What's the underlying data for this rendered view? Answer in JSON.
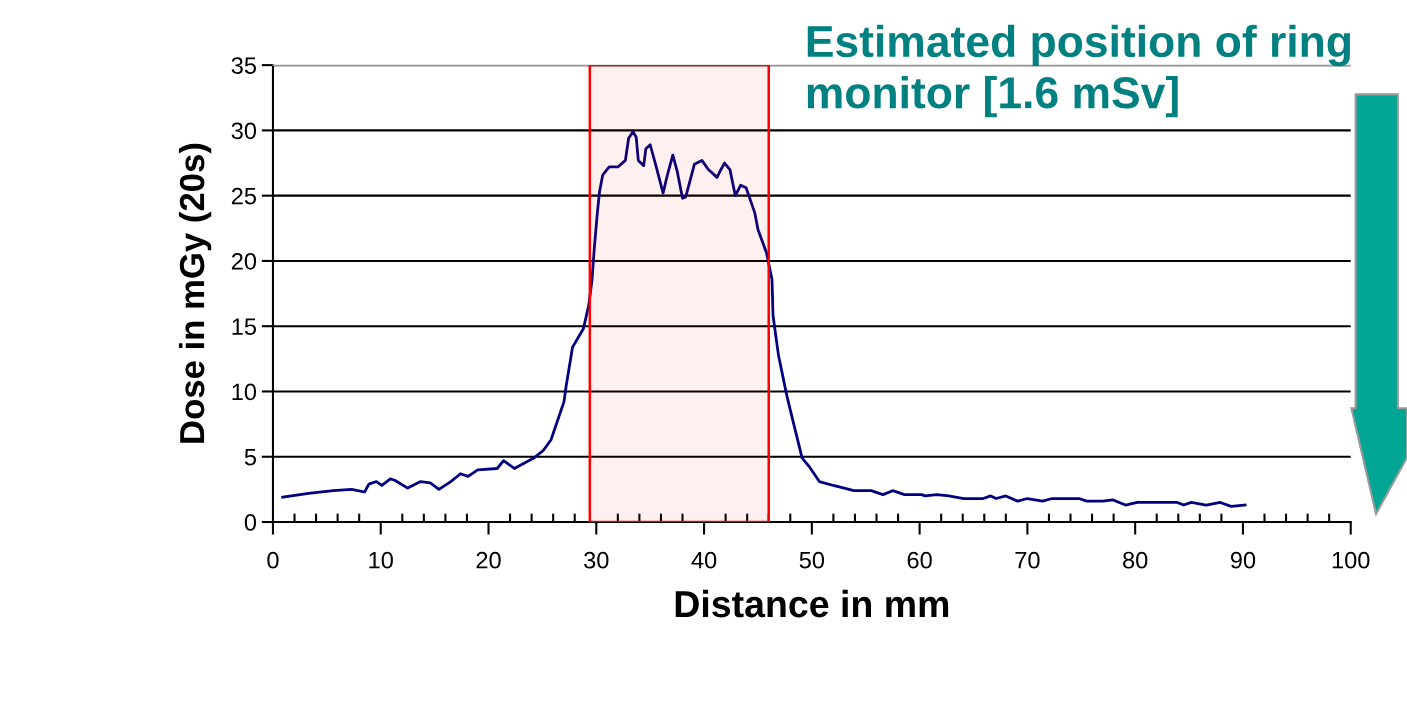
{
  "chart_data": {
    "type": "line",
    "xlabel": "Distance in mm",
    "ylabel": "Dose in mGy (20s)",
    "annotations": [
      "Estimated position of ring monitor [1.6 mSv]"
    ],
    "xlim": [
      0,
      100
    ],
    "xticks": [
      0,
      10,
      20,
      30,
      40,
      50,
      60,
      70,
      80,
      90,
      100
    ],
    "ylim": [
      0,
      35
    ],
    "yticks": [
      0,
      5,
      10,
      15,
      20,
      25,
      30,
      35
    ],
    "grid": "y",
    "marker": "none",
    "line_style": "solid",
    "bands": [
      {
        "axis": "x",
        "from": 29.4,
        "to": 46.0,
        "color": "#ff0000"
      }
    ],
    "series": [
      {
        "color": "#000080",
        "x": [
          0.9,
          3.3,
          5.6,
          7.3,
          8.5,
          8.9,
          9.6,
          10.1,
          10.9,
          11.3,
          12.5,
          13.7,
          14.6,
          15.4,
          16.5,
          17.4,
          18.1,
          19.0,
          20.8,
          21.4,
          22.4,
          24.2,
          25.1,
          25.8,
          27.0,
          27.2,
          27.8,
          28.8,
          29.3,
          29.6,
          29.8,
          30.1,
          30.3,
          30.6,
          31.2,
          32.0,
          32.7,
          33.0,
          33.4,
          33.7,
          33.9,
          34.4,
          34.6,
          35.0,
          35.5,
          36.2,
          36.6,
          37.1,
          37.5,
          38.0,
          38.3,
          39.1,
          39.8,
          40.4,
          41.2,
          41.5,
          41.9,
          42.4,
          42.9,
          43.4,
          43.9,
          44.7,
          45.0,
          45.8,
          46.3,
          46.4,
          46.9,
          47.7,
          48.5,
          49.1,
          49.8,
          50.7,
          52.0,
          53.9,
          55.5,
          56.6,
          57.5,
          58.6,
          60.2,
          60.5,
          61.6,
          62.7,
          64.1,
          65.9,
          66.6,
          67.1,
          68.0,
          69.1,
          70.0,
          71.4,
          72.3,
          74.8,
          75.5,
          77.0,
          77.9,
          79.1,
          80.2,
          83.9,
          84.5,
          85.2,
          86.6,
          87.9,
          88.9,
          90.2
        ],
        "values": [
          1.9,
          2.2,
          2.4,
          2.5,
          2.3,
          2.9,
          3.1,
          2.8,
          3.3,
          3.2,
          2.6,
          3.1,
          3.0,
          2.5,
          3.1,
          3.7,
          3.5,
          4.0,
          4.1,
          4.7,
          4.1,
          4.9,
          5.5,
          6.3,
          9.2,
          10.4,
          13.4,
          14.8,
          16.6,
          18.5,
          20.8,
          23.7,
          25.3,
          26.6,
          27.2,
          27.2,
          27.7,
          29.4,
          29.9,
          29.5,
          27.7,
          27.3,
          28.6,
          28.9,
          27.4,
          25.2,
          26.6,
          28.1,
          26.9,
          24.8,
          24.9,
          27.4,
          27.7,
          27.0,
          26.4,
          26.9,
          27.5,
          27.0,
          25.0,
          25.8,
          25.6,
          23.7,
          22.4,
          20.6,
          18.6,
          15.8,
          12.8,
          9.6,
          6.9,
          4.9,
          4.2,
          3.1,
          2.8,
          2.4,
          2.4,
          2.1,
          2.4,
          2.1,
          2.1,
          2.0,
          2.1,
          2.0,
          1.8,
          1.8,
          2.0,
          1.8,
          2.0,
          1.6,
          1.8,
          1.6,
          1.8,
          1.8,
          1.6,
          1.6,
          1.7,
          1.3,
          1.5,
          1.5,
          1.3,
          1.5,
          1.3,
          1.5,
          1.2,
          1.3
        ]
      }
    ]
  }
}
